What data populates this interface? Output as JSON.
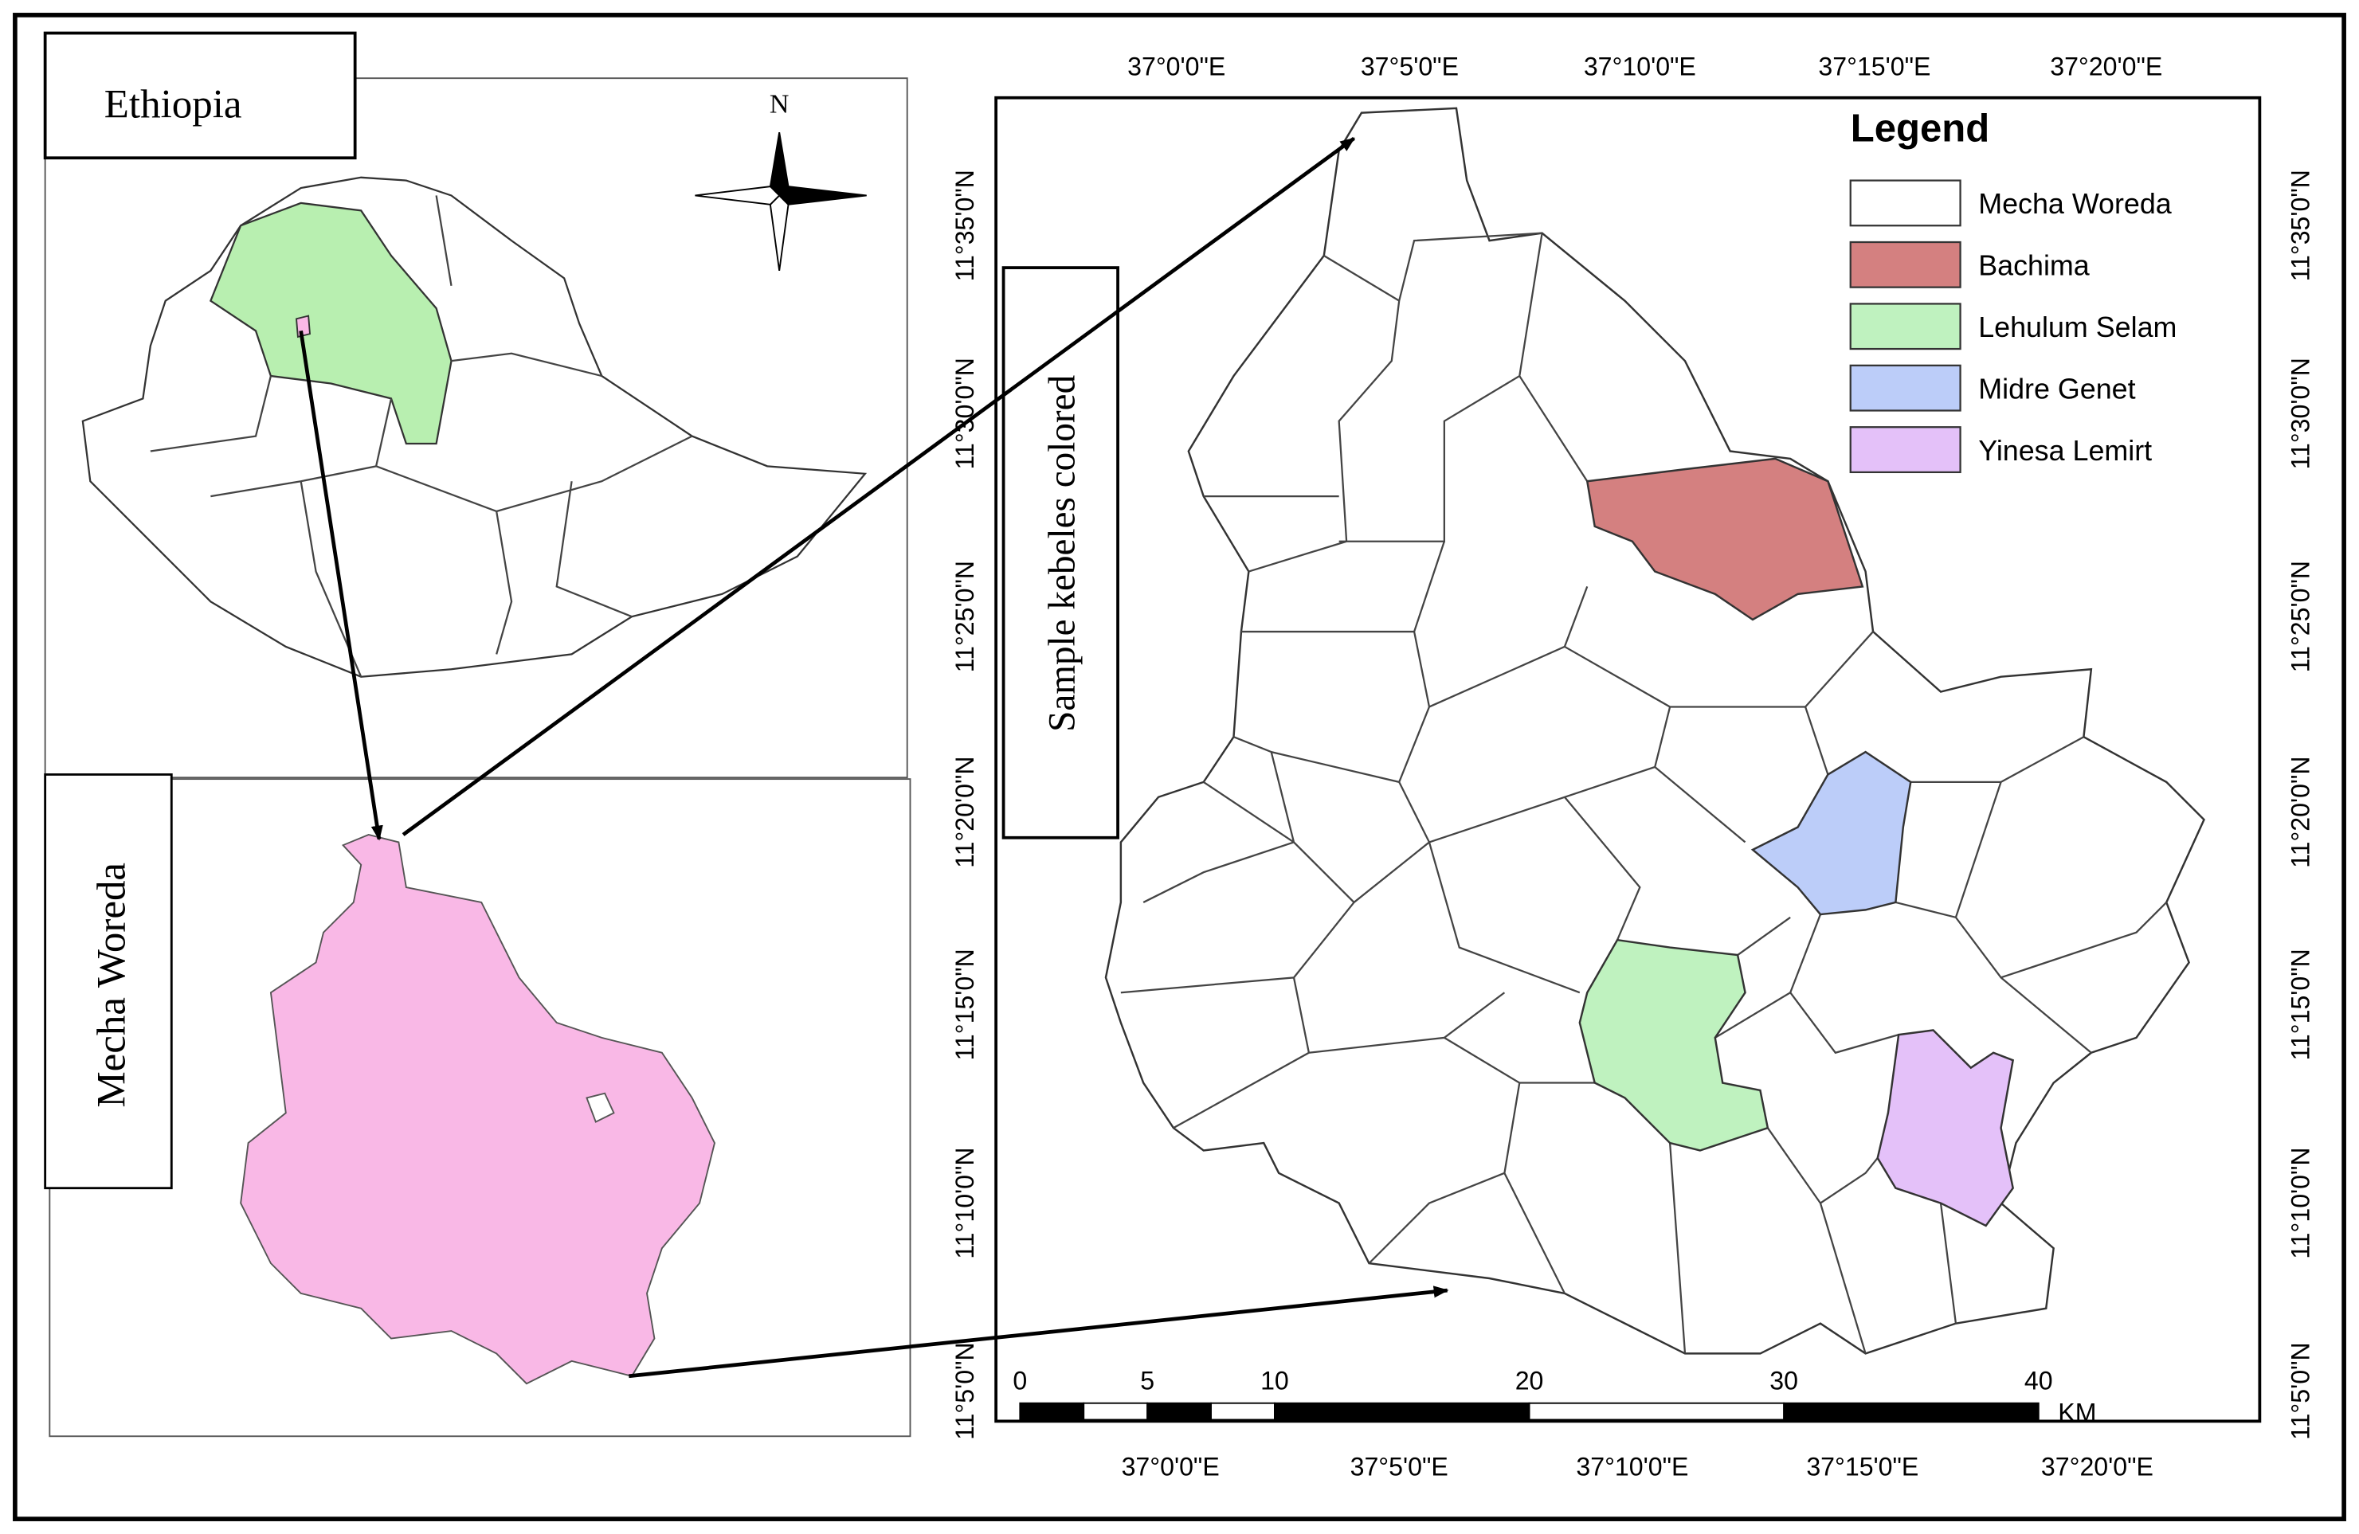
{
  "ethiopia_panel": {
    "label": "Ethiopia",
    "north": "N"
  },
  "woreda_panel": {
    "label": "Mecha Woreda"
  },
  "main_map": {
    "callout": "Sample kebeles colored",
    "top_longitudes": [
      "37°0'0\"E",
      "37°5'0\"E",
      "37°10'0\"E",
      "37°15'0\"E",
      "37°20'0\"E"
    ],
    "bottom_longitudes": [
      "37°0'0\"E",
      "37°5'0\"E",
      "37°10'0\"E",
      "37°15'0\"E",
      "37°20'0\"E"
    ],
    "left_latitudes": [
      "11°35'0\"N",
      "11°30'0\"N",
      "11°25'0\"N",
      "11°20'0\"N",
      "11°15'0\"N",
      "11°10'0\"N",
      "11°5'0\"N"
    ],
    "right_latitudes": [
      "11°35'0\"N",
      "11°30'0\"N",
      "11°25'0\"N",
      "11°20'0\"N",
      "11°15'0\"N",
      "11°10'0\"N",
      "11°5'0\"N"
    ],
    "legend": {
      "title": "Legend",
      "items": [
        {
          "label": "Mecha Woreda",
          "color": "#ffffff"
        },
        {
          "label": "Bachima",
          "color": "#d48080"
        },
        {
          "label": "Lehulum Selam",
          "color": "#bff2bf"
        },
        {
          "label": "Midre Genet",
          "color": "#bccdf9"
        },
        {
          "label": "Yinesa Lemirt",
          "color": "#e4c1f9"
        }
      ]
    },
    "scale_bar": {
      "ticks": [
        0,
        5,
        10,
        20,
        30,
        40
      ],
      "unit": "KM"
    }
  }
}
